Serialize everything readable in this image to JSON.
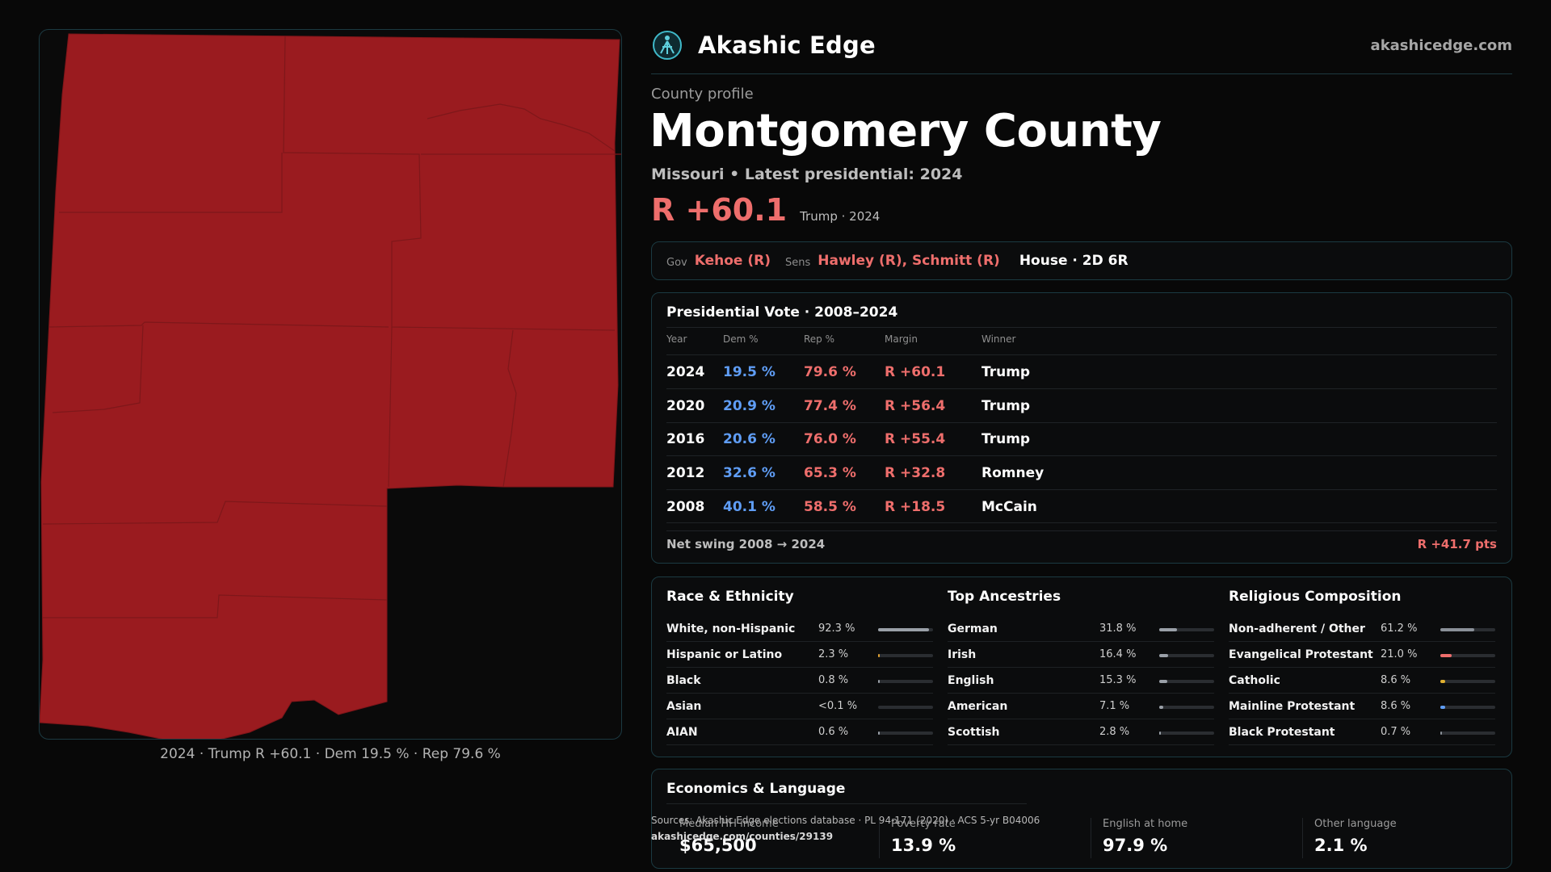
{
  "brand": {
    "name": "Akashic Edge",
    "url": "akashicedge.com"
  },
  "profile": {
    "eyebrow": "County profile",
    "county": "Montgomery County",
    "subtitle": "Missouri • Latest presidential: 2024",
    "headline_margin": "R +60.1",
    "headline_note": "Trump · 2024"
  },
  "officials": {
    "gov_label": "Gov",
    "gov": "Kehoe (R)",
    "sens_label": "Sens",
    "sens": "Hawley (R), Schmitt (R)",
    "house": "House · 2D 6R"
  },
  "presidential": {
    "title": "Presidential Vote · 2008–2024",
    "headers": [
      "Year",
      "Dem %",
      "Rep %",
      "Margin",
      "Winner"
    ],
    "rows": [
      {
        "year": "2024",
        "dem": "19.5 %",
        "rep": "79.6 %",
        "margin": "R +60.1",
        "winner": "Trump"
      },
      {
        "year": "2020",
        "dem": "20.9 %",
        "rep": "77.4 %",
        "margin": "R +56.4",
        "winner": "Trump"
      },
      {
        "year": "2016",
        "dem": "20.6 %",
        "rep": "76.0 %",
        "margin": "R +55.4",
        "winner": "Trump"
      },
      {
        "year": "2012",
        "dem": "32.6 %",
        "rep": "65.3 %",
        "margin": "R +32.8",
        "winner": "Romney"
      },
      {
        "year": "2008",
        "dem": "40.1 %",
        "rep": "58.5 %",
        "margin": "R +18.5",
        "winner": "McCain"
      }
    ],
    "swing_label": "Net swing 2008 → 2024",
    "swing_value": "R +41.7 pts"
  },
  "race": {
    "title": "Race & Ethnicity",
    "items": [
      {
        "label": "White, non-Hispanic",
        "pct": "92.3 %",
        "value": 0.923,
        "color": "#9aa0a8"
      },
      {
        "label": "Hispanic or Latino",
        "pct": "2.3 %",
        "value": 0.023,
        "color": "#e0a030"
      },
      {
        "label": "Black",
        "pct": "0.8 %",
        "value": 0.008,
        "color": "#9aa0a8"
      },
      {
        "label": "Asian",
        "pct": "<0.1 %",
        "value": 0.0,
        "color": "#9aa0a8"
      },
      {
        "label": "AIAN",
        "pct": "0.6 %",
        "value": 0.006,
        "color": "#9aa0a8"
      }
    ]
  },
  "ancestry": {
    "title": "Top Ancestries",
    "items": [
      {
        "label": "German",
        "pct": "31.8 %",
        "value": 0.318,
        "color": "#9aa0a8"
      },
      {
        "label": "Irish",
        "pct": "16.4 %",
        "value": 0.164,
        "color": "#9aa0a8"
      },
      {
        "label": "English",
        "pct": "15.3 %",
        "value": 0.153,
        "color": "#9aa0a8"
      },
      {
        "label": "American",
        "pct": "7.1 %",
        "value": 0.071,
        "color": "#9aa0a8"
      },
      {
        "label": "Scottish",
        "pct": "2.8 %",
        "value": 0.028,
        "color": "#9aa0a8"
      }
    ]
  },
  "religion": {
    "title": "Religious Composition",
    "items": [
      {
        "label": "Non-adherent / Other",
        "pct": "61.2 %",
        "value": 0.612,
        "color": "#8a9098"
      },
      {
        "label": "Evangelical Protestant",
        "pct": "21.0 %",
        "value": 0.21,
        "color": "#ee6e6c"
      },
      {
        "label": "Catholic",
        "pct": "8.6 %",
        "value": 0.086,
        "color": "#e0b030"
      },
      {
        "label": "Mainline Protestant",
        "pct": "8.6 %",
        "value": 0.086,
        "color": "#5f9df5"
      },
      {
        "label": "Black Protestant",
        "pct": "0.7 %",
        "value": 0.007,
        "color": "#8a9098"
      }
    ]
  },
  "economics": {
    "title": "Economics & Language",
    "stats": [
      {
        "label": "Median HH income",
        "value": "$65,500"
      },
      {
        "label": "Poverty rate",
        "value": "13.9 %"
      },
      {
        "label": "English at home",
        "value": "97.9 %"
      },
      {
        "label": "Other language",
        "value": "2.1 %"
      }
    ]
  },
  "sources": {
    "line": "Sources: Akashic Edge elections database · PL 94-171 (2020) · ACS 5-yr B04006",
    "url": "akashicedge.com/counties/29139"
  },
  "map": {
    "caption": "2024 · Trump R +60.1 · Dem 19.5 % · Rep 79.6 %",
    "fill": "#9a1b1f"
  }
}
